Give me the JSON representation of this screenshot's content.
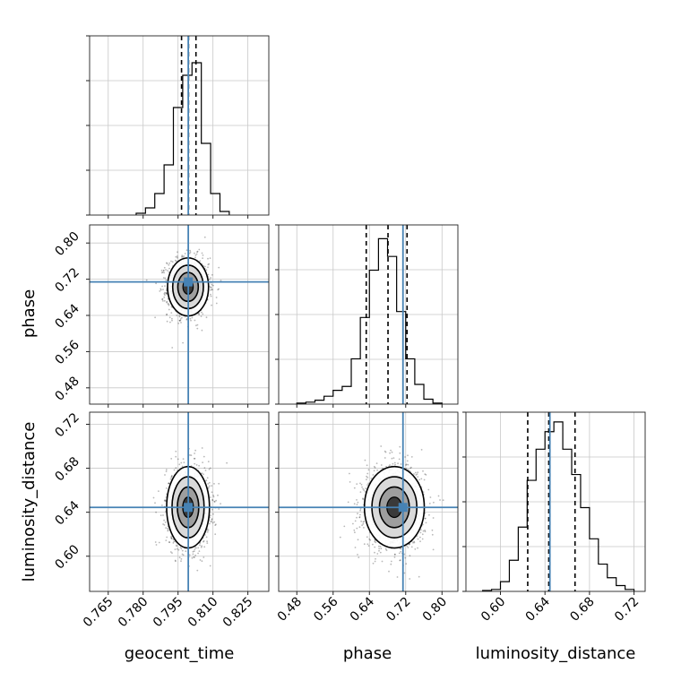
{
  "chart_data": {
    "type": "corner",
    "parameters": [
      "geocent_time",
      "phase",
      "luminosity_distance"
    ],
    "truth_color": "#4682b4",
    "panels": [
      {
        "id": "hist-geocent_time",
        "type": "histogram",
        "x_param": "geocent_time",
        "xlim": [
          0.757,
          0.834
        ],
        "bin_edges": [
          0.777,
          0.781,
          0.785,
          0.789,
          0.793,
          0.797,
          0.801,
          0.805,
          0.809,
          0.813,
          0.817
        ],
        "counts": [
          0.01,
          0.04,
          0.12,
          0.28,
          0.6,
          0.78,
          0.85,
          0.4,
          0.12,
          0.02
        ],
        "ymax": 1.0,
        "truth": 0.7994,
        "quantiles": [
          0.7965,
          0.7995,
          0.8027
        ]
      },
      {
        "id": "hist-phase",
        "type": "histogram",
        "x_param": "phase",
        "xlim": [
          0.44,
          0.835
        ],
        "bin_edges": [
          0.48,
          0.5,
          0.52,
          0.54,
          0.56,
          0.58,
          0.6,
          0.62,
          0.64,
          0.66,
          0.68,
          0.7,
          0.72,
          0.74,
          0.76,
          0.78,
          0.8
        ],
        "counts": [
          0.005,
          0.01,
          0.02,
          0.04,
          0.07,
          0.09,
          0.23,
          0.44,
          0.68,
          0.84,
          0.75,
          0.47,
          0.23,
          0.1,
          0.025,
          0.005
        ],
        "ymax": 0.91,
        "truth": 0.714,
        "quantiles": [
          0.633,
          0.681,
          0.723
        ]
      },
      {
        "id": "hist-luminosity_distance",
        "type": "histogram",
        "x_param": "luminosity_distance",
        "xlim": [
          0.569,
          0.73
        ],
        "bin_edges": [
          0.584,
          0.592,
          0.6,
          0.608,
          0.616,
          0.624,
          0.632,
          0.64,
          0.648,
          0.656,
          0.664,
          0.672,
          0.68,
          0.688,
          0.696,
          0.704,
          0.712,
          0.72
        ],
        "counts": [
          0.005,
          0.01,
          0.05,
          0.16,
          0.33,
          0.57,
          0.73,
          0.82,
          0.87,
          0.73,
          0.6,
          0.43,
          0.27,
          0.14,
          0.07,
          0.03,
          0.01
        ],
        "ymax": 0.92,
        "truth": 0.6444,
        "quantiles": [
          0.6245,
          0.6434,
          0.667
        ]
      },
      {
        "id": "scatter-geocent_time-phase",
        "type": "density2d",
        "x_param": "geocent_time",
        "y_param": "phase",
        "xlim": [
          0.757,
          0.834
        ],
        "ylim": [
          0.444,
          0.84
        ],
        "center": [
          0.7993,
          0.703
        ],
        "sigma": [
          0.0044,
          0.032
        ],
        "truth": [
          0.7994,
          0.714
        ]
      },
      {
        "id": "scatter-geocent_time-luminosity_distance",
        "type": "density2d",
        "x_param": "geocent_time",
        "y_param": "luminosity_distance",
        "xlim": [
          0.757,
          0.834
        ],
        "ylim": [
          0.568,
          0.731
        ],
        "center": [
          0.7993,
          0.6445
        ],
        "sigma": [
          0.0046,
          0.0185
        ],
        "truth": [
          0.7994,
          0.6444
        ]
      },
      {
        "id": "scatter-phase-luminosity_distance",
        "type": "density2d",
        "x_param": "phase",
        "y_param": "luminosity_distance",
        "xlim": [
          0.44,
          0.835
        ],
        "ylim": [
          0.568,
          0.731
        ],
        "center": [
          0.695,
          0.6445
        ],
        "sigma": [
          0.033,
          0.0185
        ],
        "truth": [
          0.714,
          0.6444
        ]
      }
    ],
    "ticks": {
      "geocent_time": [
        "0.765",
        "0.780",
        "0.795",
        "0.810",
        "0.825"
      ],
      "phase": [
        "0.48",
        "0.56",
        "0.64",
        "0.72",
        "0.80"
      ],
      "luminosity_distance_x": [
        "0.60",
        "0.64",
        "0.68",
        "0.72"
      ],
      "luminosity_distance_y": [
        "0.60",
        "0.64",
        "0.68",
        "0.72"
      ]
    },
    "xlabels": [
      "geocent_time",
      "phase",
      "luminosity_distance"
    ],
    "ylabels": [
      "phase",
      "luminosity_distance"
    ],
    "grid": true
  }
}
